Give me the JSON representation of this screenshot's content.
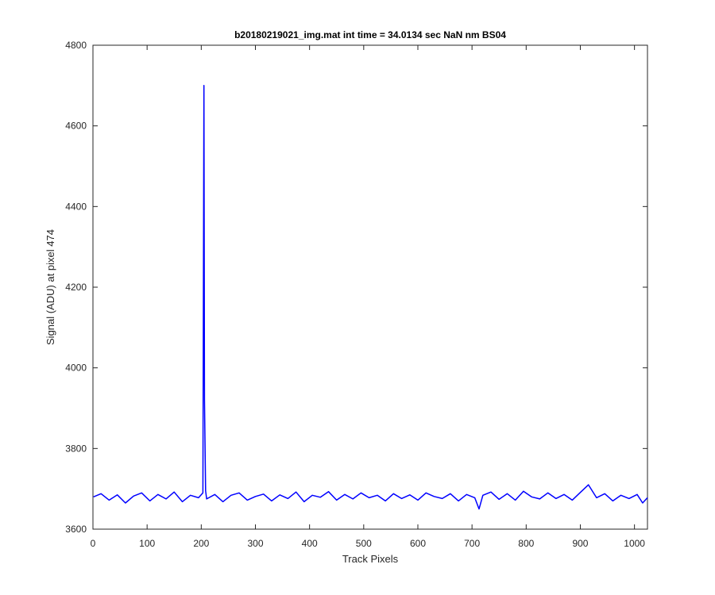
{
  "chart_data": {
    "type": "line",
    "title": "b20180219021_img.mat int time = 34.0134 sec  NaN nm BS04",
    "xlabel": "Track Pixels",
    "ylabel": "Signal (ADU) at pixel 474",
    "xlim": [
      0,
      1024
    ],
    "ylim": [
      3600,
      4800
    ],
    "x_ticks": [
      0,
      100,
      200,
      300,
      400,
      500,
      600,
      700,
      800,
      900,
      1000
    ],
    "y_ticks": [
      3600,
      3800,
      4000,
      4200,
      4400,
      4600,
      4800
    ],
    "grid": false,
    "line_color": "#0000ff",
    "series": [
      {
        "x": [
          1,
          15,
          30,
          45,
          60,
          75,
          90,
          105,
          120,
          135,
          150,
          165,
          180,
          195,
          203,
          205,
          206,
          208,
          210,
          225,
          240,
          255,
          270,
          285,
          300,
          315,
          330,
          345,
          360,
          375,
          390,
          405,
          420,
          435,
          450,
          465,
          480,
          495,
          510,
          525,
          540,
          555,
          570,
          585,
          600,
          615,
          630,
          645,
          660,
          675,
          690,
          705,
          713,
          720,
          735,
          750,
          765,
          780,
          795,
          810,
          825,
          840,
          855,
          870,
          885,
          900,
          915,
          930,
          945,
          960,
          975,
          990,
          1005,
          1015,
          1024
        ],
        "y": [
          3680,
          3688,
          3672,
          3685,
          3665,
          3682,
          3690,
          3670,
          3686,
          3675,
          3692,
          3668,
          3684,
          3678,
          3690,
          4700,
          3920,
          3695,
          3675,
          3686,
          3668,
          3684,
          3690,
          3672,
          3681,
          3687,
          3670,
          3685,
          3676,
          3692,
          3668,
          3684,
          3679,
          3693,
          3672,
          3686,
          3675,
          3690,
          3678,
          3684,
          3670,
          3688,
          3676,
          3685,
          3672,
          3690,
          3681,
          3676,
          3688,
          3670,
          3686,
          3678,
          3650,
          3684,
          3692,
          3674,
          3688,
          3672,
          3694,
          3680,
          3675,
          3690,
          3676,
          3686,
          3672,
          3691,
          3710,
          3678,
          3688,
          3670,
          3684,
          3676,
          3686,
          3665,
          3678
        ]
      }
    ]
  }
}
